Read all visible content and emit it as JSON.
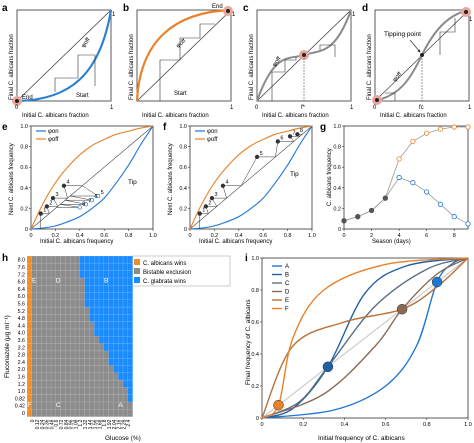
{
  "panels": {
    "a": {
      "letter": "a",
      "xlabel": "Initial C. albicans fraction",
      "ylabel": "Final C. albicans fraction",
      "x_start": "0",
      "x_end": "1",
      "y_end": "1",
      "phi": "φoff",
      "start": "Start",
      "end": "End"
    },
    "b": {
      "letter": "b",
      "xlabel": "Initial C. albicans fraction",
      "ylabel": "Final C. albicans fraction",
      "x_end": "1",
      "y_end": "1",
      "phi": "φoff",
      "start": "Start",
      "end": "End"
    },
    "c": {
      "letter": "c",
      "xlabel": "Initial C. albicans fraction",
      "ylabel": "Final C. albicans fraction",
      "x_start": "0",
      "x_end": "1",
      "y_end": "1",
      "phi": "φoff",
      "fstar": "f*"
    },
    "d": {
      "letter": "d",
      "xlabel": "Initial C. albicans fraction",
      "ylabel": "Final C. albicans fraction",
      "x_start": "0",
      "x_end": "1",
      "y_end": "1",
      "phi": "φoff",
      "fc": "fc",
      "tipping": "Tipping point"
    },
    "e": {
      "letter": "e",
      "xlabel": "Initial C. albicans frequency",
      "ylabel": "Next C. albicans frequency",
      "legend": [
        "φon",
        "φoff"
      ],
      "tip": "Tip",
      "point_labels": [
        "1",
        "2",
        "3",
        "4",
        "5",
        "6",
        "7",
        "8"
      ]
    },
    "f": {
      "letter": "f",
      "xlabel": "Initial C. albicans frequency",
      "ylabel": "Next C. albicans frequency",
      "legend": [
        "φon",
        "φoff"
      ],
      "tip": "Tip",
      "point_labels": [
        "1",
        "2",
        "3",
        "4",
        "5",
        "6",
        "7",
        "8"
      ]
    },
    "g": {
      "letter": "g",
      "xlabel": "Season (days)",
      "ylabel": "C. albicans frequency"
    },
    "h": {
      "letter": "h",
      "xlabel": "Glucose (%)",
      "ylabel": "Fluconazole (μg ml⁻¹)",
      "legend": [
        "C. albicans wins",
        "Bistable exclusion",
        "C. glabrata wins"
      ],
      "region_labels": [
        "E",
        "D",
        "B",
        "F",
        "C",
        "A"
      ]
    },
    "i": {
      "letter": "i",
      "xlabel": "Initial frequency of C. albicans",
      "ylabel": "Final frequency of C. albicans",
      "legend": [
        "A",
        "B",
        "C",
        "D",
        "E",
        "F"
      ]
    }
  },
  "colors": {
    "blue": "#1f77d4",
    "orange": "#e8822a",
    "gray": "#8a8a8a",
    "darkgray": "#444444",
    "pink": "#e8a79a",
    "grid_orange": "#f28c28",
    "grid_gray": "#8c8c8c",
    "grid_blue": "#1a8cff",
    "i_A": "#1f77d4",
    "i_B": "#1f5fa8",
    "i_C": "#5a6e85",
    "i_D": "#8a6a55",
    "i_E": "#b8733a",
    "i_F": "#e8822a"
  },
  "chart_data": [
    {
      "panel": "e",
      "type": "line",
      "xlim": [
        0,
        1.0
      ],
      "ylim": [
        0,
        1.0
      ],
      "x_ticks": [
        "0",
        "0.2",
        "0.4",
        "0.6",
        "0.8",
        "1.0"
      ],
      "y_ticks": [
        "0",
        "0.2",
        "0.4",
        "0.6",
        "0.8",
        "1.0"
      ],
      "series": [
        {
          "name": "φon",
          "x": [
            0,
            0.1,
            0.2,
            0.3,
            0.4,
            0.5,
            0.6,
            0.7,
            0.8,
            0.9,
            1.0
          ],
          "y": [
            0,
            0.01,
            0.03,
            0.07,
            0.12,
            0.2,
            0.3,
            0.45,
            0.62,
            0.82,
            1.0
          ]
        },
        {
          "name": "φoff",
          "x": [
            0,
            0.1,
            0.2,
            0.3,
            0.4,
            0.5,
            0.6,
            0.7,
            0.8,
            0.9,
            1.0
          ],
          "y": [
            0,
            0.25,
            0.45,
            0.6,
            0.72,
            0.81,
            0.87,
            0.92,
            0.95,
            0.98,
            1.0
          ]
        }
      ],
      "points": {
        "x": [
          0.08,
          0.13,
          0.18,
          0.27,
          0.55,
          0.5,
          0.45,
          0.4
        ],
        "y": [
          0.15,
          0.22,
          0.3,
          0.42,
          0.32,
          0.28,
          0.24,
          0.21
        ]
      }
    },
    {
      "panel": "f",
      "type": "line",
      "xlim": [
        0,
        1.0
      ],
      "ylim": [
        0,
        1.0
      ],
      "x_ticks": [
        "0",
        "0.2",
        "0.4",
        "0.6",
        "0.8",
        "1.0"
      ],
      "y_ticks": [
        "0",
        "0.2",
        "0.4",
        "0.6",
        "0.8",
        "1.0"
      ],
      "series": [
        {
          "name": "φon",
          "x": [
            0,
            0.1,
            0.2,
            0.3,
            0.4,
            0.5,
            0.6,
            0.7,
            0.8,
            0.9,
            1.0
          ],
          "y": [
            0,
            0.01,
            0.03,
            0.07,
            0.12,
            0.2,
            0.3,
            0.45,
            0.62,
            0.82,
            1.0
          ]
        },
        {
          "name": "φoff",
          "x": [
            0,
            0.1,
            0.2,
            0.3,
            0.4,
            0.5,
            0.6,
            0.7,
            0.8,
            0.9,
            1.0
          ],
          "y": [
            0,
            0.25,
            0.45,
            0.6,
            0.72,
            0.81,
            0.87,
            0.92,
            0.95,
            0.98,
            1.0
          ]
        }
      ],
      "points": {
        "x": [
          0.08,
          0.13,
          0.18,
          0.27,
          0.55,
          0.72,
          0.82,
          0.88
        ],
        "y": [
          0.15,
          0.22,
          0.3,
          0.42,
          0.7,
          0.85,
          0.9,
          0.92
        ]
      }
    },
    {
      "panel": "g",
      "type": "line",
      "xlim": [
        0,
        9
      ],
      "ylim": [
        0,
        1.0
      ],
      "x_ticks": [
        "0",
        "2",
        "4",
        "6",
        "8"
      ],
      "y_ticks": [
        "0",
        "0.2",
        "0.4",
        "0.6",
        "0.8",
        "1.0"
      ],
      "series": [
        {
          "name": "orange",
          "x": [
            0,
            1,
            2,
            3,
            4,
            5,
            6,
            7,
            8,
            9
          ],
          "y": [
            0.08,
            0.12,
            0.18,
            0.3,
            0.68,
            0.85,
            0.93,
            0.97,
            0.99,
            0.99
          ]
        },
        {
          "name": "blue",
          "x": [
            0,
            1,
            2,
            3,
            4,
            5,
            6,
            7,
            8,
            9
          ],
          "y": [
            0.08,
            0.12,
            0.18,
            0.3,
            0.5,
            0.45,
            0.36,
            0.24,
            0.12,
            0.05
          ]
        }
      ]
    },
    {
      "panel": "h",
      "type": "heatmap",
      "x_ticks": [
        "0",
        "0.12",
        "0.24",
        "0.36",
        "0.48",
        "0.6",
        "0.72",
        "0.84",
        "0.96",
        "1.08",
        "1.2",
        "1.32",
        "1.44",
        "1.56",
        "1.68",
        "1.8",
        "1.92",
        "2.04",
        "2.16",
        "2.28",
        "2.4"
      ],
      "y_ticks": [
        "8.0",
        "7.6",
        "7.2",
        "6.8",
        "6.4",
        "6.0",
        "5.6",
        "5.2",
        "4.8",
        "4.4",
        "4.0",
        "3.6",
        "3.2",
        "2.8",
        "2.4",
        "2.0",
        "1.6",
        "1.2",
        "1.0",
        "0.82",
        "0.42",
        "0"
      ],
      "boundary_first_blue_col": [
        11,
        11,
        11,
        12,
        12,
        12,
        12,
        13,
        13,
        14,
        14,
        15,
        16,
        17,
        17,
        18,
        19,
        20,
        21,
        21,
        22,
        22
      ]
    },
    {
      "panel": "i",
      "type": "line",
      "xlim": [
        0,
        1.0
      ],
      "ylim": [
        0,
        1.0
      ],
      "x_ticks": [
        "0",
        "0.2",
        "0.4",
        "0.6",
        "0.8",
        "1.0"
      ],
      "y_ticks": [
        "0",
        "0.2",
        "0.4",
        "0.6",
        "0.8",
        "1.0"
      ],
      "series": [
        {
          "name": "A",
          "fixed": 0.85
        },
        {
          "name": "B",
          "fixed": 0.32
        },
        {
          "name": "C",
          "fixed": 0.32
        },
        {
          "name": "D",
          "fixed": 0.68
        },
        {
          "name": "E",
          "fixed": 0.68
        },
        {
          "name": "F",
          "fixed": 0.08
        }
      ]
    }
  ]
}
